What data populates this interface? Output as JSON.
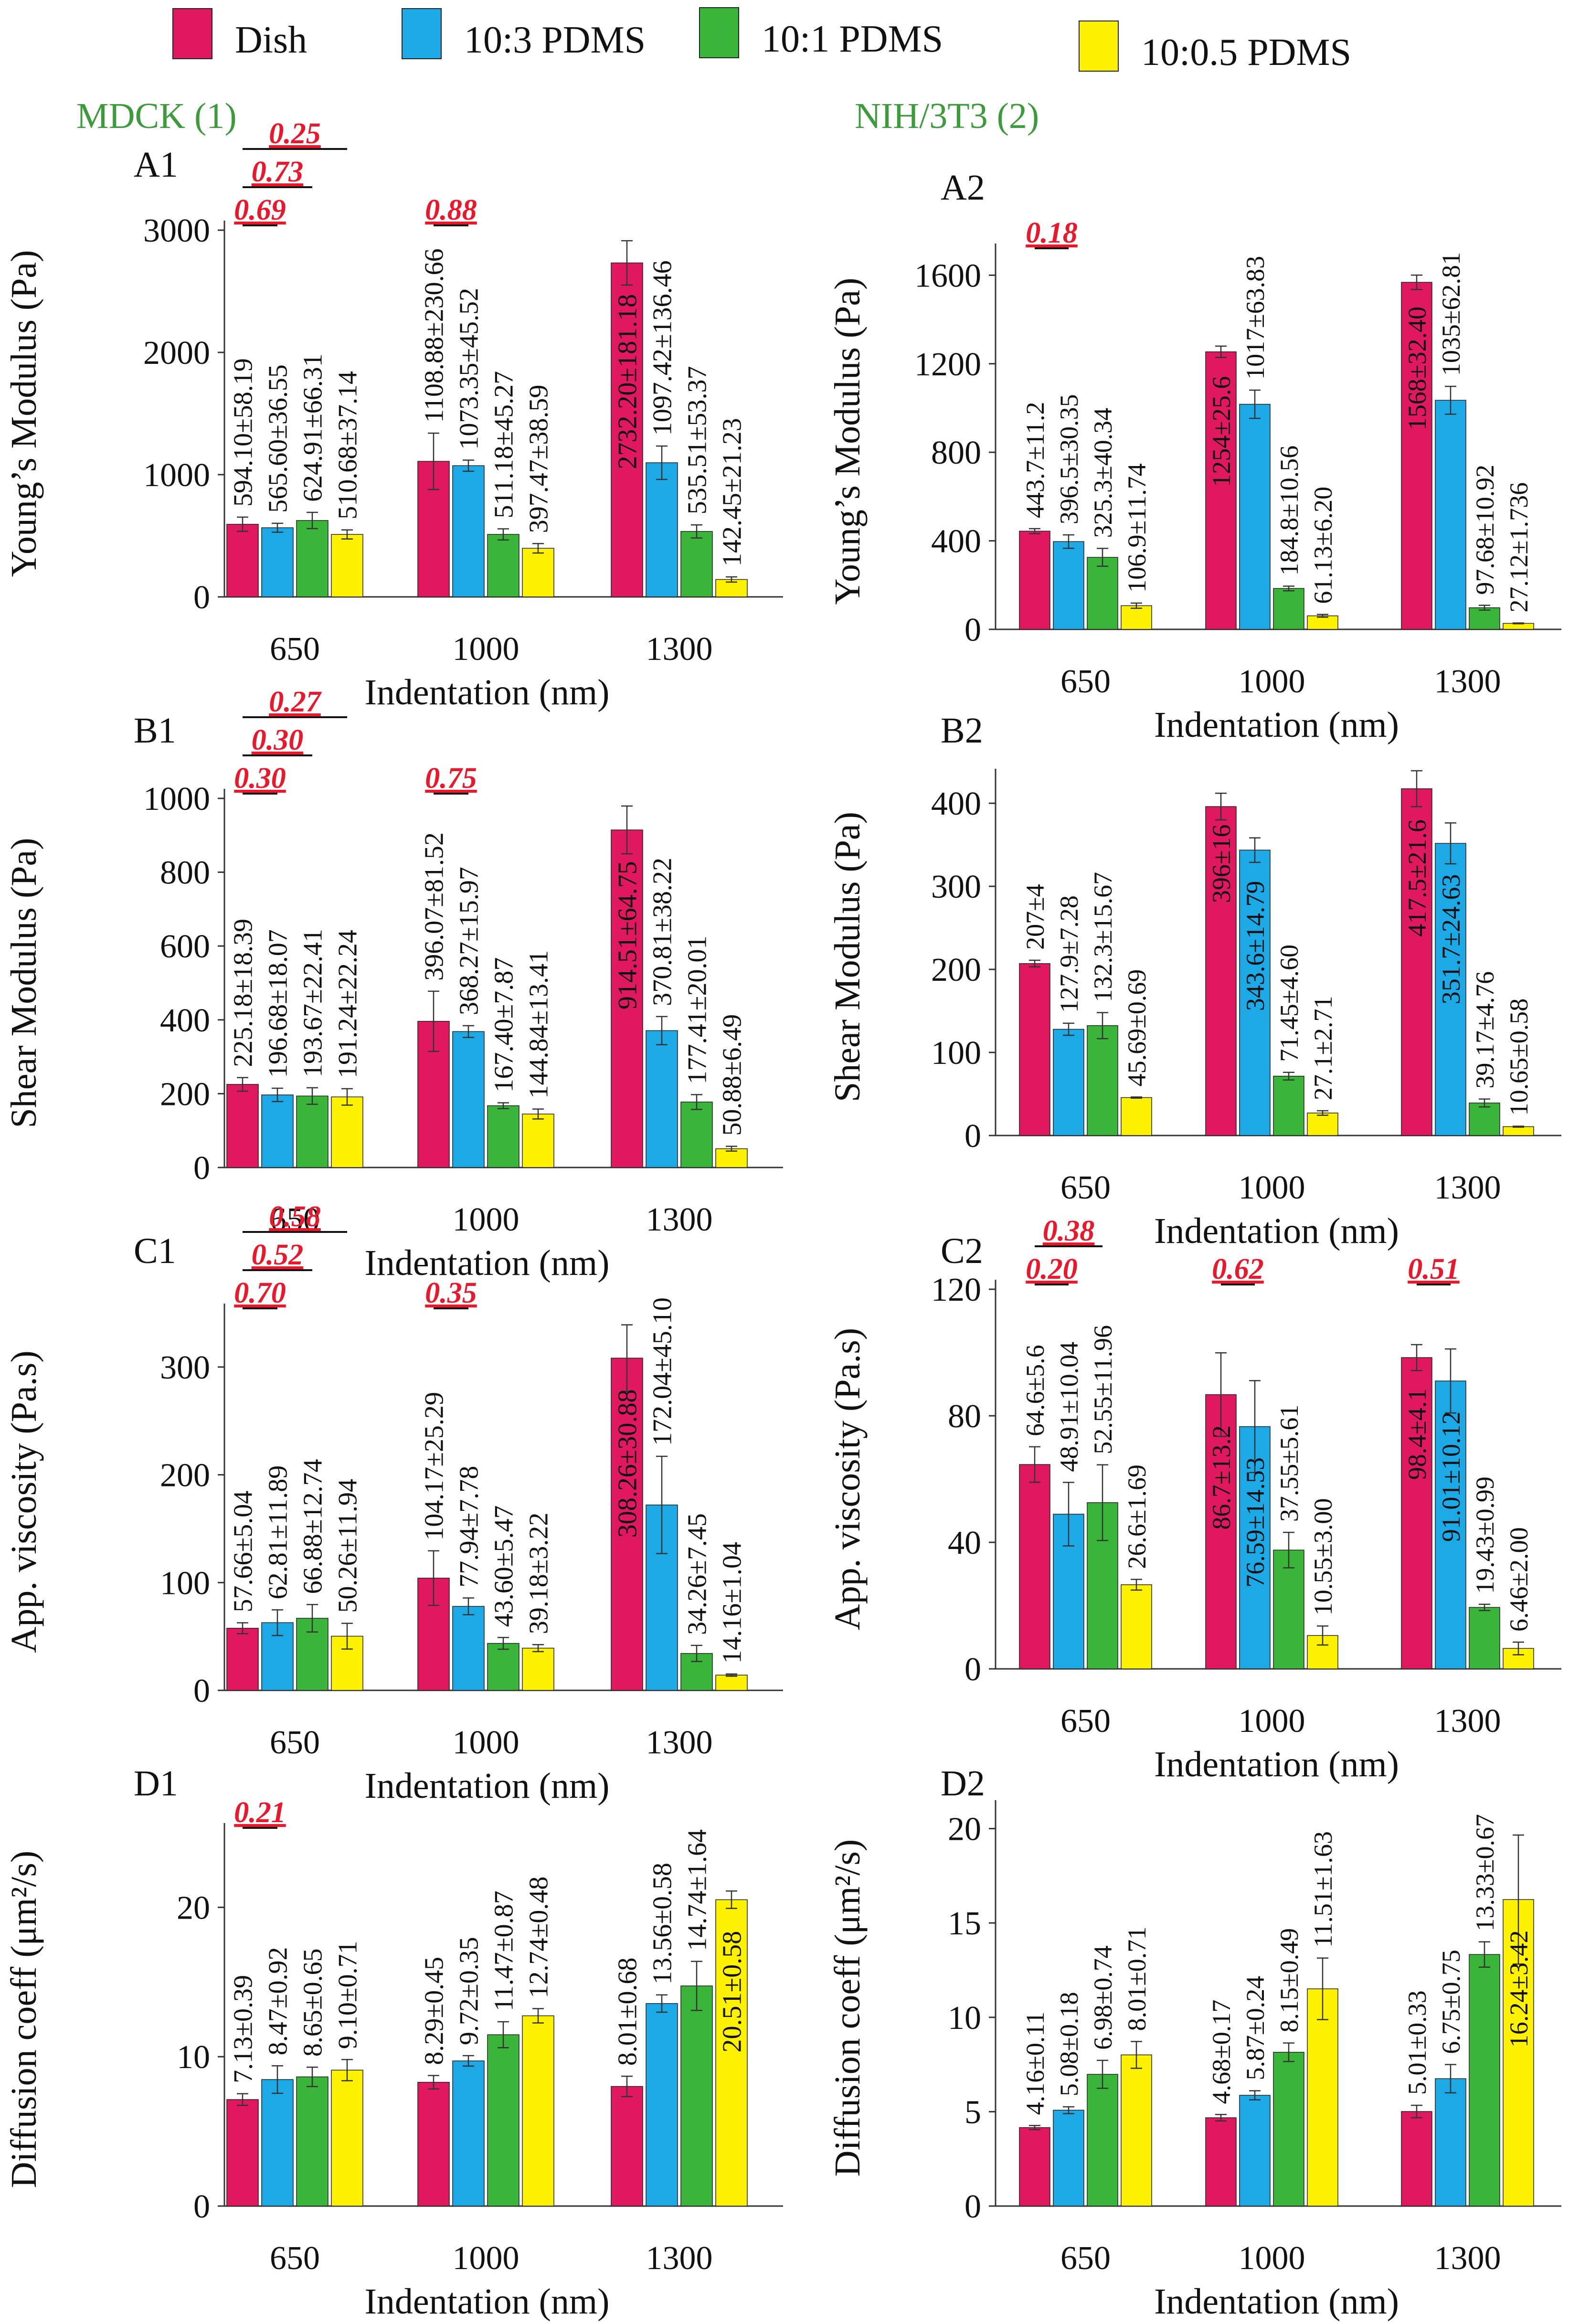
{
  "legend": [
    {
      "name": "Dish",
      "color": "#e0195f"
    },
    {
      "name": "10:3 PDMS",
      "color": "#1ca9e6"
    },
    {
      "name": "10:1 PDMS",
      "color": "#3bb539"
    },
    {
      "name": "10:0.5 PDMS",
      "color": "#fff200"
    }
  ],
  "column_titles": [
    "MDCK (1)",
    "NIH/3T3 (2)"
  ],
  "title_color": "#3d9a3d",
  "sig_color": "#e8192c",
  "chart_data": [
    {
      "type": "bar",
      "title": "A1",
      "column": 0,
      "row": 0,
      "ylabel": "Young’s Modulus  (Pa)",
      "xlabel": "Indentation (nm)",
      "categories": [
        "650",
        "1000",
        "1300"
      ],
      "ylim": [
        0,
        3000
      ],
      "yticks": [
        0,
        1000,
        2000,
        3000
      ],
      "series": [
        {
          "name": "Dish",
          "values": [
            594.1,
            1108.88,
            2732.2
          ],
          "errors": [
            58.19,
            230.66,
            181.18
          ],
          "labels": [
            "594.10±58.19",
            "1108.88±230.66",
            "2732.20±181.18"
          ]
        },
        {
          "name": "10:3 PDMS",
          "values": [
            565.6,
            1073.35,
            1097.42
          ],
          "errors": [
            36.55,
            45.52,
            136.46
          ],
          "labels": [
            "565.60±36.55",
            "1073.35±45.52",
            "1097.42±136.46"
          ]
        },
        {
          "name": "10:1 PDMS",
          "values": [
            624.91,
            511.18,
            535.51
          ],
          "errors": [
            66.31,
            45.27,
            53.37
          ],
          "labels": [
            "624.91±66.31",
            "511.18±45.27",
            "535.51±53.37"
          ]
        },
        {
          "name": "10:0.5 PDMS",
          "values": [
            510.68,
            397.47,
            142.45
          ],
          "errors": [
            37.14,
            38.59,
            21.23
          ],
          "labels": [
            "510.68±37.14",
            "397.47±38.59",
            "142.45±21.23"
          ]
        }
      ],
      "significance": [
        {
          "group": 0,
          "from": 0,
          "to": 1,
          "label": "0.69"
        },
        {
          "group": 0,
          "from": 0,
          "to": 2,
          "label": "0.73"
        },
        {
          "group": 0,
          "from": 0,
          "to": 3,
          "label": "0.25"
        },
        {
          "group": 1,
          "from": 0,
          "to": 1,
          "label": "0.88"
        }
      ]
    },
    {
      "type": "bar",
      "title": "A2",
      "column": 1,
      "row": 0,
      "ylabel": "Young’s Modulus  (Pa)",
      "xlabel": "Indentation (nm)",
      "categories": [
        "650",
        "1000",
        "1300"
      ],
      "ylim": [
        0,
        1700
      ],
      "yticks": [
        0,
        400,
        800,
        1200,
        1600
      ],
      "series": [
        {
          "name": "Dish",
          "values": [
            443.7,
            1254,
            1568
          ],
          "errors": [
            11.2,
            25.6,
            32.4
          ],
          "labels": [
            "443.7±11.2",
            "1254±25.6",
            "1568±32.40"
          ]
        },
        {
          "name": "10:3 PDMS",
          "values": [
            396.5,
            1017,
            1035
          ],
          "errors": [
            30.35,
            63.83,
            62.81
          ],
          "labels": [
            "396.5±30.35",
            "1017±63.83",
            "1035±62.81"
          ]
        },
        {
          "name": "10:1 PDMS",
          "values": [
            325.3,
            184.8,
            97.68
          ],
          "errors": [
            40.34,
            10.56,
            10.92
          ],
          "labels": [
            "325.3±40.34",
            "184.8±10.56",
            "97.68±10.92"
          ]
        },
        {
          "name": "10:0.5 PDMS",
          "values": [
            106.9,
            61.13,
            27.12
          ],
          "errors": [
            11.74,
            6.2,
            1.736
          ],
          "labels": [
            "106.9±11.74",
            "61.13±6.20",
            "27.12±1.736"
          ]
        }
      ],
      "significance": [
        {
          "group": 0,
          "from": 0,
          "to": 1,
          "label": "0.18"
        }
      ]
    },
    {
      "type": "bar",
      "title": "B1",
      "column": 0,
      "row": 1,
      "ylabel": "Shear Modulus (Pa)",
      "xlabel": "Indentation (nm)",
      "categories": [
        "650",
        "1000",
        "1300"
      ],
      "ylim": [
        0,
        1000
      ],
      "yticks": [
        0,
        200,
        400,
        600,
        800,
        1000
      ],
      "series": [
        {
          "name": "Dish",
          "values": [
            225.18,
            396.07,
            914.51
          ],
          "errors": [
            18.39,
            81.52,
            64.75
          ],
          "labels": [
            "225.18±18.39",
            "396.07±81.52",
            "914.51±64.75"
          ]
        },
        {
          "name": "10:3 PDMS",
          "values": [
            196.68,
            368.27,
            370.81
          ],
          "errors": [
            18.07,
            15.97,
            38.22
          ],
          "labels": [
            "196.68±18.07",
            "368.27±15.97",
            "370.81±38.22"
          ]
        },
        {
          "name": "10:1 PDMS",
          "values": [
            193.67,
            167.4,
            177.41
          ],
          "errors": [
            22.41,
            7.87,
            20.01
          ],
          "labels": [
            "193.67±22.41",
            "167.40±7.87",
            "177.41±20.01"
          ]
        },
        {
          "name": "10:0.5 PDMS",
          "values": [
            191.24,
            144.84,
            50.88
          ],
          "errors": [
            22.24,
            13.41,
            6.49
          ],
          "labels": [
            "191.24±22.24",
            "144.84±13.41",
            "50.88±6.49"
          ]
        }
      ],
      "significance": [
        {
          "group": 0,
          "from": 0,
          "to": 1,
          "label": "0.30"
        },
        {
          "group": 0,
          "from": 0,
          "to": 2,
          "label": "0.30"
        },
        {
          "group": 0,
          "from": 0,
          "to": 3,
          "label": "0.27"
        },
        {
          "group": 1,
          "from": 0,
          "to": 1,
          "label": "0.75"
        }
      ]
    },
    {
      "type": "bar",
      "title": "B2",
      "column": 1,
      "row": 1,
      "ylabel": "Shear Modulus (Pa)",
      "xlabel": "Indentation (nm)",
      "categories": [
        "650",
        "1000",
        "1300"
      ],
      "ylim": [
        0,
        430
      ],
      "yticks": [
        0,
        100,
        200,
        300,
        400
      ],
      "series": [
        {
          "name": "Dish",
          "values": [
            207,
            396,
            417.5
          ],
          "errors": [
            4,
            16,
            21.6
          ],
          "labels": [
            "207±4",
            "396±16",
            "417.5±21.6"
          ]
        },
        {
          "name": "10:3 PDMS",
          "values": [
            127.9,
            343.6,
            351.7
          ],
          "errors": [
            7.28,
            14.79,
            24.63
          ],
          "labels": [
            "127.9±7.28",
            "343.6±14.79",
            "351.7±24.63"
          ]
        },
        {
          "name": "10:1 PDMS",
          "values": [
            132.3,
            71.45,
            39.17
          ],
          "errors": [
            15.67,
            4.6,
            4.76
          ],
          "labels": [
            "132.3±15.67",
            "71.45±4.60",
            "39.17±4.76"
          ]
        },
        {
          "name": "10:0.5 PDMS",
          "values": [
            45.69,
            27.1,
            10.65
          ],
          "errors": [
            0.69,
            2.71,
            0.58
          ],
          "labels": [
            "45.69±0.69",
            "27.1±2.71",
            "10.65±0.58"
          ]
        }
      ],
      "significance": []
    },
    {
      "type": "bar",
      "title": "C1",
      "column": 0,
      "row": 2,
      "ylabel": "App. viscosity  (Pa.s)",
      "xlabel": "Indentation (nm)",
      "categories": [
        "650",
        "1000",
        "1300"
      ],
      "ylim": [
        0,
        350
      ],
      "yticks": [
        0,
        100,
        200,
        300
      ],
      "series": [
        {
          "name": "Dish",
          "values": [
            57.66,
            104.17,
            308.26
          ],
          "errors": [
            5.04,
            25.29,
            30.88
          ],
          "labels": [
            "57.66±5.04",
            "104.17±25.29",
            "308.26±30.88"
          ]
        },
        {
          "name": "10:3 PDMS",
          "values": [
            62.81,
            77.94,
            172.04
          ],
          "errors": [
            11.89,
            7.78,
            45.1
          ],
          "labels": [
            "62.81±11.89",
            "77.94±7.78",
            "172.04±45.10"
          ]
        },
        {
          "name": "10:1 PDMS",
          "values": [
            66.88,
            43.6,
            34.26
          ],
          "errors": [
            12.74,
            5.47,
            7.45
          ],
          "labels": [
            "66.88±12.74",
            "43.60±5.47",
            "34.26±7.45"
          ]
        },
        {
          "name": "10:0.5 PDMS",
          "values": [
            50.26,
            39.18,
            14.16
          ],
          "errors": [
            11.94,
            3.22,
            1.04
          ],
          "labels": [
            "50.26±11.94",
            "39.18±3.22",
            "14.16±1.04"
          ]
        }
      ],
      "significance": [
        {
          "group": 0,
          "from": 0,
          "to": 1,
          "label": "0.70"
        },
        {
          "group": 0,
          "from": 0,
          "to": 2,
          "label": "0.52"
        },
        {
          "group": 0,
          "from": 0,
          "to": 3,
          "label": "0.58"
        },
        {
          "group": 1,
          "from": 0,
          "to": 1,
          "label": "0.35"
        }
      ]
    },
    {
      "type": "bar",
      "title": "C2",
      "column": 1,
      "row": 2,
      "ylabel": "App. viscosity  (Pa.s)",
      "xlabel": "Indentation (nm)",
      "categories": [
        "650",
        "1000",
        "1300"
      ],
      "ylim": [
        0,
        120
      ],
      "yticks": [
        0,
        40,
        80,
        120
      ],
      "series": [
        {
          "name": "Dish",
          "values": [
            64.6,
            86.7,
            98.4
          ],
          "errors": [
            5.6,
            13.2,
            4.1
          ],
          "labels": [
            "64.6±5.6",
            "86.7±13.2",
            "98.4±4.1"
          ]
        },
        {
          "name": "10:3 PDMS",
          "values": [
            48.91,
            76.59,
            91.01
          ],
          "errors": [
            10.04,
            14.53,
            10.12
          ],
          "labels": [
            "48.91±10.04",
            "76.59±14.53",
            "91.01±10.12"
          ]
        },
        {
          "name": "10:1 PDMS",
          "values": [
            52.55,
            37.55,
            19.43
          ],
          "errors": [
            11.96,
            5.61,
            0.99
          ],
          "labels": [
            "52.55±11.96",
            "37.55±5.61",
            "19.43±0.99"
          ]
        },
        {
          "name": "10:0.5 PDMS",
          "values": [
            26.6,
            10.55,
            6.46
          ],
          "errors": [
            1.69,
            3.0,
            2.0
          ],
          "labels": [
            "26.6±1.69",
            "10.55±3.00",
            "6.46±2.00"
          ]
        }
      ],
      "significance": [
        {
          "group": 0,
          "from": 0,
          "to": 1,
          "label": "0.20"
        },
        {
          "group": 0,
          "from": 0,
          "to": 2,
          "label": "0.38"
        },
        {
          "group": 1,
          "from": 0,
          "to": 1,
          "label": "0.62"
        },
        {
          "group": 2,
          "from": 0,
          "to": 1,
          "label": "0.51"
        }
      ]
    },
    {
      "type": "bar",
      "title": "D1",
      "column": 0,
      "row": 3,
      "ylabel": "Diffusion coeff (μm²/s)",
      "xlabel": "Indentation (nm)",
      "categories": [
        "650",
        "1000",
        "1300"
      ],
      "ylim": [
        0,
        25
      ],
      "yticks": [
        0,
        10,
        20
      ],
      "series": [
        {
          "name": "Dish",
          "values": [
            7.13,
            8.29,
            8.01
          ],
          "errors": [
            0.39,
            0.45,
            0.68
          ],
          "labels": [
            "7.13±0.39",
            "8.29±0.45",
            "8.01±0.68"
          ]
        },
        {
          "name": "10:3 PDMS",
          "values": [
            8.47,
            9.72,
            13.56
          ],
          "errors": [
            0.92,
            0.35,
            0.58
          ],
          "labels": [
            "8.47±0.92",
            "9.72±0.35",
            "13.56±0.58"
          ]
        },
        {
          "name": "10:1 PDMS",
          "values": [
            8.65,
            11.47,
            14.74
          ],
          "errors": [
            0.65,
            0.87,
            1.64
          ],
          "labels": [
            "8.65±0.65",
            "11.47±0.87",
            "14.74±1.64"
          ]
        },
        {
          "name": "10:0.5 PDMS",
          "values": [
            9.1,
            12.74,
            20.51
          ],
          "errors": [
            0.71,
            0.48,
            0.58
          ],
          "labels": [
            "9.10±0.71",
            "12.74±0.48",
            "20.51±0.58"
          ]
        }
      ],
      "significance": [
        {
          "group": 0,
          "from": 0,
          "to": 1,
          "label": "0.21"
        }
      ]
    },
    {
      "type": "bar",
      "title": "D2",
      "column": 1,
      "row": 3,
      "ylabel": "Diffusion coeff (μm²/s)",
      "xlabel": "Indentation (nm)",
      "categories": [
        "650",
        "1000",
        "1300"
      ],
      "ylim": [
        0,
        21
      ],
      "yticks": [
        0,
        5,
        10,
        15,
        20
      ],
      "series": [
        {
          "name": "Dish",
          "values": [
            4.16,
            4.68,
            5.01
          ],
          "errors": [
            0.11,
            0.17,
            0.33
          ],
          "labels": [
            "4.16±0.11",
            "4.68±0.17",
            "5.01±0.33"
          ]
        },
        {
          "name": "10:3 PDMS",
          "values": [
            5.08,
            5.87,
            6.75
          ],
          "errors": [
            0.18,
            0.24,
            0.75
          ],
          "labels": [
            "5.08±0.18",
            "5.87±0.24",
            "6.75±0.75"
          ]
        },
        {
          "name": "10:1 PDMS",
          "values": [
            6.98,
            8.15,
            13.33
          ],
          "errors": [
            0.74,
            0.49,
            0.67
          ],
          "labels": [
            "6.98±0.74",
            "8.15±0.49",
            "13.33±0.67"
          ]
        },
        {
          "name": "10:0.5 PDMS",
          "values": [
            8.01,
            11.51,
            16.24
          ],
          "errors": [
            0.71,
            1.63,
            3.42
          ],
          "labels": [
            "8.01±0.71",
            "11.51±1.63",
            "16.24±3.42"
          ]
        }
      ],
      "significance": []
    }
  ]
}
